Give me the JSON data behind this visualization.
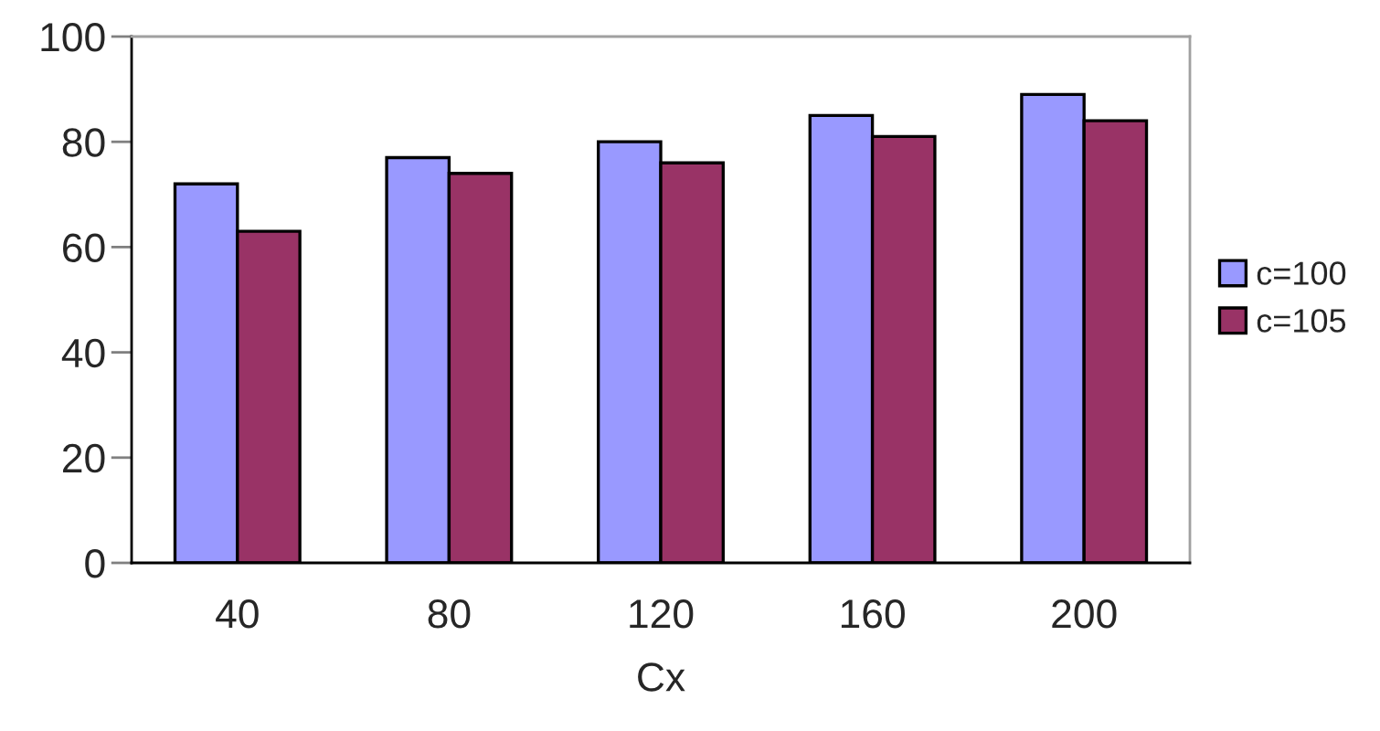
{
  "chart_data": {
    "type": "bar",
    "xlabel": "Cx",
    "categories": [
      "40",
      "80",
      "120",
      "160",
      "200"
    ],
    "series": [
      {
        "name": "c=100",
        "color": "#9999ff",
        "values": [
          72,
          77,
          80,
          85,
          89
        ]
      },
      {
        "name": "c=105",
        "color": "#993366",
        "values": [
          63,
          74,
          76,
          81,
          84
        ]
      }
    ],
    "ylim": [
      0,
      100
    ],
    "yticks": [
      0,
      20,
      40,
      60,
      80,
      100
    ],
    "legend": "right"
  }
}
